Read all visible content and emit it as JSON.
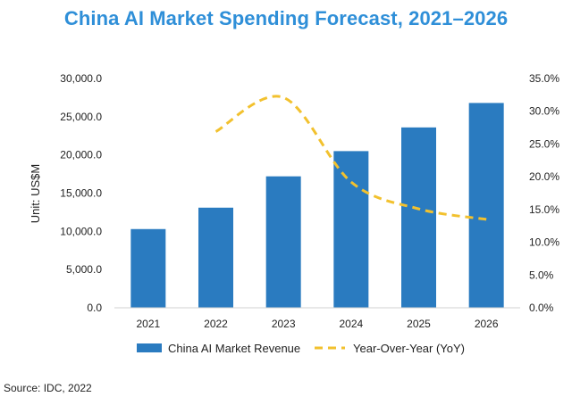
{
  "chart_data": {
    "type": "bar",
    "title": "China AI Market Spending Forecast, 2021–2026",
    "ylabel": "Unit: US$M",
    "categories": [
      "2021",
      "2022",
      "2023",
      "2024",
      "2025",
      "2026"
    ],
    "ylim": [
      0,
      30000
    ],
    "yticks": [
      "0.0",
      "5,000.0",
      "10,000.0",
      "15,000.0",
      "20,000.0",
      "25,000.0",
      "30,000.0"
    ],
    "y2lim": [
      0,
      35
    ],
    "y2ticks": [
      "0.0%",
      "5.0%",
      "10.0%",
      "15.0%",
      "20.0%",
      "25.0%",
      "30.0%",
      "35.0%"
    ],
    "series": [
      {
        "name": "China AI Market Revenue",
        "type": "bar",
        "axis": "left",
        "color": "#2a7bc0",
        "values": [
          10300,
          13100,
          17200,
          20500,
          23600,
          26800
        ]
      },
      {
        "name": "Year-Over-Year (YoY)",
        "type": "line",
        "style": "dashed",
        "axis": "right",
        "color": "#f2c12e",
        "x": [
          "2022",
          "2023",
          "2024",
          "2025",
          "2026"
        ],
        "values": [
          26.9,
          32.1,
          19.2,
          15.1,
          13.5
        ]
      }
    ],
    "legend_position": "bottom",
    "grid": false
  },
  "source": "Source: IDC, 2022"
}
